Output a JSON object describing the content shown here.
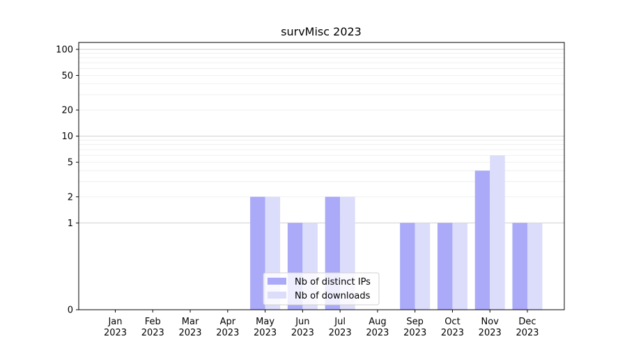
{
  "chart_data": {
    "type": "bar",
    "title": "survMisc 2023",
    "categories": [
      "Jan\n2023",
      "Feb\n2023",
      "Mar\n2023",
      "Apr\n2023",
      "May\n2023",
      "Jun\n2023",
      "Jul\n2023",
      "Aug\n2023",
      "Sep\n2023",
      "Oct\n2023",
      "Nov\n2023",
      "Dec\n2023"
    ],
    "series": [
      {
        "name": "Nb of distinct IPs",
        "values": [
          0,
          0,
          0,
          0,
          2,
          1,
          2,
          0,
          1,
          1,
          4,
          1
        ],
        "color": "#aaaaf8"
      },
      {
        "name": "Nb of downloads",
        "values": [
          0,
          0,
          0,
          0,
          2,
          1,
          2,
          0,
          1,
          1,
          6,
          1
        ],
        "color": "#dcdcfb"
      }
    ],
    "yscale": "symlog",
    "ylim": [
      0,
      120
    ],
    "yticks": [
      0,
      1,
      2,
      5,
      10,
      20,
      50,
      100
    ],
    "legend_position": "lower-center",
    "grid": true
  }
}
